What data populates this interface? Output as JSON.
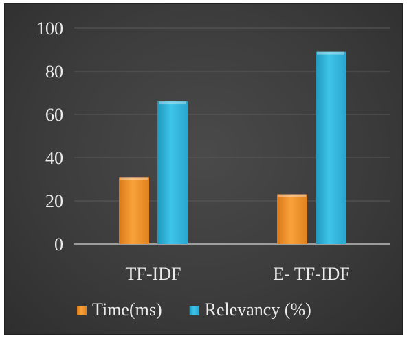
{
  "chart_data": {
    "type": "bar",
    "categories": [
      "TF-IDF",
      "E- TF-IDF"
    ],
    "series": [
      {
        "name": "Time(ms)",
        "values": [
          31,
          23
        ],
        "color": "#f79a2e"
      },
      {
        "name": "Relevancy (%)",
        "values": [
          66,
          89
        ],
        "color": "#2fb4dc"
      }
    ],
    "title": "",
    "xlabel": "",
    "ylabel": "",
    "ylim": [
      0,
      100
    ],
    "yticks": [
      0,
      20,
      40,
      60,
      80,
      100
    ],
    "grid": true,
    "legend": "bottom"
  }
}
